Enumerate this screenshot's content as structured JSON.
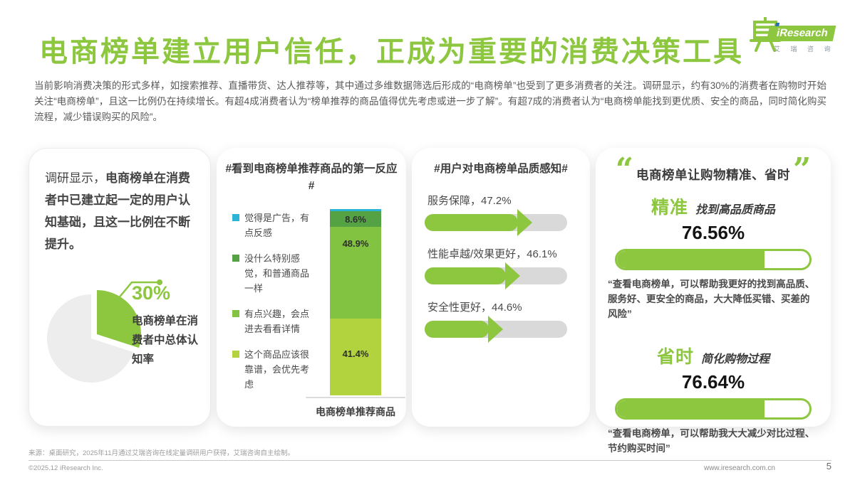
{
  "colors": {
    "accent": "#8dc63f",
    "cyan": "#2bb4d8",
    "dark_green": "#55a245",
    "mid_green": "#82c341",
    "light_green": "#b2d23e",
    "track": "#d9d9d9",
    "pie_rest": "#ededed"
  },
  "header": {
    "title": "电商榜单建立用户信任，正成为重要的消费决策工具",
    "logo": {
      "brand": "iResearch",
      "subtext": "艾 瑞 咨 询"
    }
  },
  "intro": "当前影响消费决策的形式多样，如搜索推荐、直播带货、达人推荐等，其中通过多维数据筛选后形成的“电商榜单”也受到了更多消费者的关注。调研显示，约有30%的消费者在购物时开始关注“电商榜单”，且这一比例仍在持续增长。有超4成消费者认为“榜单推荐的商品值得优先考虑或进一步了解”。有超7成的消费者认为“电商榜单能找到更优质、安全的商品，同时简化购买流程，减少错误购买的风险”。",
  "panel1": {
    "lead": "调研显示，",
    "statement": "电商榜单在消费者中已建立起一定的用户认知基础，且这一比例在不断提升。",
    "pie_value": "30%",
    "pie_caption": "电商榜单在消费者中总体认知率"
  },
  "panel2": {
    "title": "#看到电商榜单推荐商品的第一反应#",
    "axis_label": "电商榜单推荐商品",
    "segments": [
      {
        "name": "觉得是广告，有点反感",
        "value": 1.1,
        "display": "",
        "color": "#2bb4d8"
      },
      {
        "name": "没什么特别感觉，和普通商品一样",
        "value": 8.6,
        "display": "8.6%",
        "color": "#55a245"
      },
      {
        "name": "有点兴趣，会点进去看看详情",
        "value": 48.9,
        "display": "48.9%",
        "color": "#82c341"
      },
      {
        "name": "这个商品应该很靠谱，会优先考虑",
        "value": 41.4,
        "display": "41.4%",
        "color": "#b2d23e"
      }
    ]
  },
  "panel3": {
    "title": "#用户对电商榜单品质感知#",
    "items": [
      {
        "label": "服务保障，47.2%",
        "value": 47.2
      },
      {
        "label": "性能卓越/效果更好，46.1%",
        "value": 46.1
      },
      {
        "label": "安全性更好，44.6%",
        "value": 44.6
      }
    ]
  },
  "panel4": {
    "open_quote": "“",
    "close_quote": "”",
    "title": "电商榜单让购物精准、省时",
    "sections": [
      {
        "keyword": "精准",
        "desc": "找到高品质商品",
        "value": 76.56,
        "display": "76.56%",
        "quote": "“查看电商榜单，可以帮助我更好的找到高品质、服务好、更安全的商品，大大降低买错、买差的风险”"
      },
      {
        "keyword": "省时",
        "desc": "简化购物过程",
        "value": 76.64,
        "display": "76.64%",
        "quote": "“查看电商榜单，可以帮助我大大减少对比过程、节约购买时间”"
      }
    ]
  },
  "footer": {
    "source": "来源：桌面研究，2025年11月通过艾瑞咨询在线定量调研用户获得，艾瑞咨询自主绘制。",
    "copyright": "©2025.12 iResearch Inc.",
    "website": "www.iresearch.com.cn",
    "page": "5"
  },
  "chart_data": [
    {
      "type": "pie",
      "title": "电商榜单在消费者中总体认知率",
      "labels": [
        "电商榜单在消费者中总体认知率",
        "其他"
      ],
      "values": [
        30,
        70
      ],
      "highlight_label": "30%",
      "colors": [
        "#8dc63f",
        "#ededed"
      ],
      "exploded_slice": 0
    },
    {
      "type": "bar",
      "subtype": "stacked-column",
      "title": "#看到电商榜单推荐商品的第一反应#",
      "categories": [
        "电商榜单推荐商品"
      ],
      "series": [
        {
          "name": "觉得是广告，有点反感",
          "values": [
            1.1
          ],
          "color": "#2bb4d8"
        },
        {
          "name": "没什么特别感觉，和普通商品一样",
          "values": [
            8.6
          ],
          "color": "#55a245"
        },
        {
          "name": "有点兴趣，会点进去看看详情",
          "values": [
            48.9
          ],
          "color": "#82c341"
        },
        {
          "name": "这个商品应该很靠谱，会优先考虑",
          "values": [
            41.4
          ],
          "color": "#b2d23e"
        }
      ],
      "ylim": [
        0,
        100
      ],
      "legend_position": "left",
      "stack_order_top_to_bottom": true
    },
    {
      "type": "bar",
      "subtype": "arrow-progress",
      "title": "#用户对电商榜单品质感知#",
      "categories": [
        "服务保障",
        "性能卓越/效果更好",
        "安全性更好"
      ],
      "values": [
        47.2,
        46.1,
        44.6
      ],
      "unit": "%"
    },
    {
      "type": "bar",
      "subtype": "capsule-progress",
      "title": "电商榜单让购物精准、省时",
      "categories": [
        "精准 找到高品质商品",
        "省时 简化购物过程"
      ],
      "values": [
        76.56,
        76.64
      ],
      "unit": "%",
      "ylim": [
        0,
        100
      ]
    }
  ]
}
